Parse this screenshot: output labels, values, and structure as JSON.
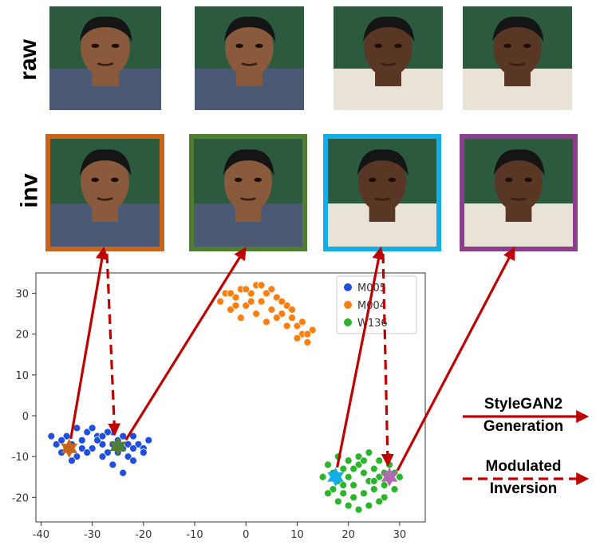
{
  "rows": {
    "raw_label": "raw",
    "inv_label": "inv"
  },
  "frame_colors": [
    "#c8651b",
    "#4f7d32",
    "#13aee8",
    "#8b3f8b"
  ],
  "faces": {
    "raw": [
      {
        "subject": "M005",
        "skin": "#8a5a3c"
      },
      {
        "subject": "M005",
        "skin": "#8a5a3c"
      },
      {
        "subject": "W136",
        "skin": "#5a3624"
      },
      {
        "subject": "W136",
        "skin": "#5a3624"
      }
    ],
    "inv": [
      {
        "subject": "M005",
        "skin": "#8a5a3c"
      },
      {
        "subject": "M005",
        "skin": "#8a5a3c"
      },
      {
        "subject": "W136",
        "skin": "#5a3624"
      },
      {
        "subject": "W136",
        "skin": "#5a3624"
      }
    ]
  },
  "chart_data": {
    "type": "scatter",
    "xlim": [
      -41,
      35
    ],
    "ylim": [
      -26,
      35
    ],
    "xticks": [
      -40,
      -30,
      -20,
      -10,
      0,
      10,
      20,
      30
    ],
    "yticks": [
      -20,
      -10,
      0,
      10,
      20,
      30
    ],
    "series": [
      {
        "name": "M005",
        "color": "#1f4ee0",
        "points": [
          [
            -38,
            -5
          ],
          [
            -37,
            -7
          ],
          [
            -36,
            -9
          ],
          [
            -35,
            -5
          ],
          [
            -34,
            -7
          ],
          [
            -33,
            -10
          ],
          [
            -32,
            -6
          ],
          [
            -31,
            -4
          ],
          [
            -30,
            -8
          ],
          [
            -29,
            -5
          ],
          [
            -28,
            -7
          ],
          [
            -27,
            -9
          ],
          [
            -26,
            -4
          ],
          [
            -25,
            -6
          ],
          [
            -24,
            -8
          ],
          [
            -23,
            -10
          ],
          [
            -22,
            -5
          ],
          [
            -21,
            -7
          ],
          [
            -20,
            -8
          ],
          [
            -19,
            -6
          ],
          [
            -36,
            -6
          ],
          [
            -34,
            -11
          ],
          [
            -32,
            -8
          ],
          [
            -30,
            -3
          ],
          [
            -28,
            -10
          ],
          [
            -26,
            -12
          ],
          [
            -24,
            -14
          ],
          [
            -22,
            -11
          ],
          [
            -20,
            -9
          ],
          [
            -29,
            -6
          ],
          [
            -27,
            -4
          ],
          [
            -25,
            -9
          ],
          [
            -23,
            -7
          ],
          [
            -33,
            -3
          ],
          [
            -35,
            -8
          ],
          [
            -31,
            -9
          ],
          [
            -28,
            -5
          ],
          [
            -26,
            -7
          ],
          [
            -24,
            -5
          ],
          [
            -22,
            -8
          ]
        ]
      },
      {
        "name": "M004",
        "color": "#ff7f0e",
        "points": [
          [
            -5,
            28
          ],
          [
            -4,
            30
          ],
          [
            -3,
            26
          ],
          [
            -2,
            29
          ],
          [
            -1,
            31
          ],
          [
            0,
            27
          ],
          [
            1,
            30
          ],
          [
            2,
            32
          ],
          [
            3,
            28
          ],
          [
            4,
            30
          ],
          [
            5,
            26
          ],
          [
            6,
            29
          ],
          [
            7,
            25
          ],
          [
            8,
            27
          ],
          [
            9,
            24
          ],
          [
            10,
            22
          ],
          [
            11,
            20
          ],
          [
            12,
            18
          ],
          [
            13,
            21
          ],
          [
            2,
            25
          ],
          [
            -1,
            24
          ],
          [
            4,
            23
          ],
          [
            6,
            24
          ],
          [
            8,
            22
          ],
          [
            10,
            19
          ],
          [
            12,
            20
          ],
          [
            -3,
            30
          ],
          [
            1,
            28
          ],
          [
            5,
            31
          ],
          [
            7,
            28
          ],
          [
            11,
            23
          ],
          [
            9,
            26
          ],
          [
            3,
            32
          ],
          [
            -2,
            27
          ],
          [
            0,
            31
          ]
        ]
      },
      {
        "name": "W136",
        "color": "#2ab52a",
        "points": [
          [
            16,
            -12
          ],
          [
            17,
            -14
          ],
          [
            18,
            -16
          ],
          [
            19,
            -13
          ],
          [
            20,
            -15
          ],
          [
            21,
            -17
          ],
          [
            22,
            -12
          ],
          [
            23,
            -14
          ],
          [
            24,
            -16
          ],
          [
            25,
            -13
          ],
          [
            26,
            -15
          ],
          [
            27,
            -17
          ],
          [
            28,
            -12
          ],
          [
            29,
            -14
          ],
          [
            30,
            -15
          ],
          [
            17,
            -18
          ],
          [
            19,
            -19
          ],
          [
            21,
            -20
          ],
          [
            23,
            -19
          ],
          [
            25,
            -18
          ],
          [
            27,
            -20
          ],
          [
            22,
            -10
          ],
          [
            24,
            -9
          ],
          [
            20,
            -11
          ],
          [
            18,
            -10
          ],
          [
            26,
            -11
          ],
          [
            28,
            -10
          ],
          [
            29,
            -18
          ],
          [
            15,
            -15
          ],
          [
            22,
            -23
          ],
          [
            24,
            -22
          ],
          [
            20,
            -22
          ],
          [
            18,
            -21
          ],
          [
            26,
            -21
          ],
          [
            16,
            -19
          ],
          [
            21,
            -13
          ],
          [
            23,
            -11
          ],
          [
            25,
            -16
          ],
          [
            27,
            -14
          ],
          [
            19,
            -17
          ]
        ]
      }
    ],
    "stars": [
      {
        "name": "inv1",
        "x": -34.5,
        "y": -8,
        "color": "#c8651b"
      },
      {
        "name": "inv2",
        "x": -25,
        "y": -7.5,
        "color": "#4f7d32"
      },
      {
        "name": "inv3",
        "x": 17.5,
        "y": -15,
        "color": "#13aee8"
      },
      {
        "name": "inv4",
        "x": 28,
        "y": -15,
        "color": "#b06ab0"
      }
    ]
  },
  "legend_key": {
    "solid_label": [
      "StyleGAN2",
      "Generation"
    ],
    "dashed_label": [
      "Modulated",
      "Inversion"
    ],
    "arrow_color": "#c00000"
  }
}
